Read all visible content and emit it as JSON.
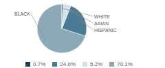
{
  "chart_data": {
    "type": "pie",
    "categories": [
      "BLACK",
      "HISPANIC",
      "ASIAN",
      "WHITE"
    ],
    "values": [
      70.1,
      24.0,
      5.2,
      0.7
    ],
    "value_labels": [
      "70.1%",
      "24.0%",
      "5.2%",
      "0.7%"
    ],
    "colors": [
      "#8ca9b8",
      "#4a7a94",
      "#d0e2ea",
      "#1e3f52"
    ],
    "legend": "bottom"
  }
}
